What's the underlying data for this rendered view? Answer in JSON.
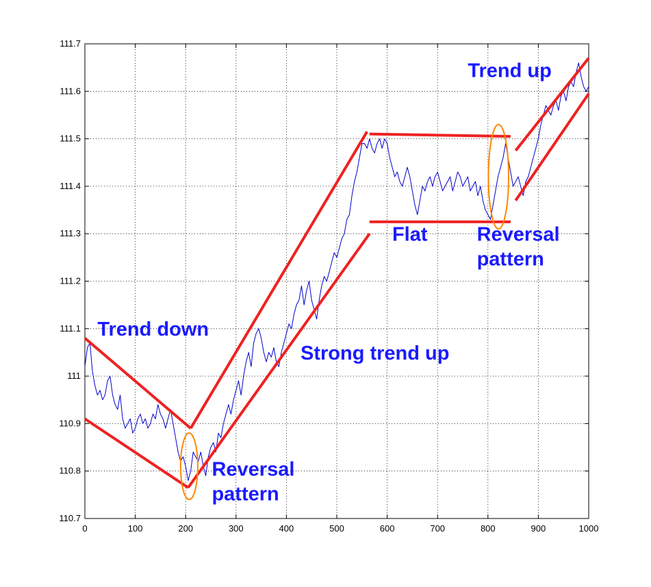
{
  "chart_data": {
    "type": "line",
    "title": "",
    "xlabel": "",
    "ylabel": "",
    "xlim": [
      0,
      1000
    ],
    "ylim": [
      110.7,
      111.7
    ],
    "grid": true,
    "x_ticks": [
      0,
      100,
      200,
      300,
      400,
      500,
      600,
      700,
      800,
      900,
      1000
    ],
    "y_ticks": [
      110.7,
      110.8,
      110.9,
      111,
      111.1,
      111.2,
      111.3,
      111.4,
      111.5,
      111.6,
      111.7
    ],
    "x_tick_labels": [
      "0",
      "100",
      "200",
      "300",
      "400",
      "500",
      "600",
      "700",
      "800",
      "900",
      "1000"
    ],
    "y_tick_labels": [
      "110.7",
      "110.8",
      "110.9",
      "111",
      "111.1",
      "111.2",
      "111.3",
      "111.4",
      "111.5",
      "111.6",
      "111.7"
    ],
    "series": [
      {
        "color": "#0000cc",
        "x": [
          0,
          5,
          10,
          15,
          20,
          25,
          30,
          35,
          40,
          45,
          50,
          55,
          60,
          65,
          70,
          75,
          80,
          85,
          90,
          95,
          100,
          105,
          110,
          115,
          120,
          125,
          130,
          135,
          140,
          145,
          150,
          155,
          160,
          165,
          170,
          175,
          180,
          185,
          190,
          195,
          200,
          205,
          210,
          215,
          220,
          225,
          230,
          235,
          240,
          245,
          250,
          255,
          260,
          265,
          270,
          275,
          280,
          285,
          290,
          295,
          300,
          305,
          310,
          315,
          320,
          325,
          330,
          335,
          340,
          345,
          350,
          355,
          360,
          365,
          370,
          375,
          380,
          385,
          390,
          395,
          400,
          405,
          410,
          415,
          420,
          425,
          430,
          435,
          440,
          445,
          450,
          455,
          460,
          465,
          470,
          475,
          480,
          485,
          490,
          495,
          500,
          505,
          510,
          515,
          520,
          525,
          530,
          535,
          540,
          545,
          550,
          555,
          560,
          565,
          570,
          575,
          580,
          585,
          590,
          595,
          600,
          605,
          610,
          615,
          620,
          625,
          630,
          635,
          640,
          645,
          650,
          655,
          660,
          665,
          670,
          675,
          680,
          685,
          690,
          695,
          700,
          705,
          710,
          715,
          720,
          725,
          730,
          735,
          740,
          745,
          750,
          755,
          760,
          765,
          770,
          775,
          780,
          785,
          790,
          795,
          800,
          805,
          810,
          815,
          820,
          825,
          830,
          835,
          840,
          845,
          850,
          855,
          860,
          865,
          870,
          875,
          880,
          885,
          890,
          895,
          900,
          905,
          910,
          915,
          920,
          925,
          930,
          935,
          940,
          945,
          950,
          955,
          960,
          965,
          970,
          975,
          980,
          985,
          990,
          995,
          1000
        ],
        "y": [
          111.02,
          111.06,
          111.07,
          111.01,
          110.98,
          110.96,
          110.97,
          110.95,
          110.96,
          110.99,
          111.0,
          110.96,
          110.94,
          110.93,
          110.96,
          110.91,
          110.89,
          110.9,
          110.91,
          110.88,
          110.89,
          110.91,
          110.92,
          110.9,
          110.91,
          110.89,
          110.9,
          110.92,
          110.91,
          110.94,
          110.92,
          110.91,
          110.89,
          110.91,
          110.93,
          110.9,
          110.87,
          110.84,
          110.82,
          110.83,
          110.81,
          110.78,
          110.8,
          110.84,
          110.83,
          110.82,
          110.84,
          110.81,
          110.79,
          110.83,
          110.85,
          110.86,
          110.84,
          110.88,
          110.87,
          110.9,
          110.92,
          110.94,
          110.92,
          110.95,
          110.97,
          110.99,
          110.96,
          111.0,
          111.03,
          111.05,
          111.02,
          111.07,
          111.09,
          111.1,
          111.08,
          111.05,
          111.03,
          111.05,
          111.04,
          111.06,
          111.03,
          111.02,
          111.05,
          111.07,
          111.09,
          111.11,
          111.1,
          111.13,
          111.15,
          111.16,
          111.19,
          111.15,
          111.18,
          111.2,
          111.16,
          111.14,
          111.12,
          111.16,
          111.19,
          111.21,
          111.2,
          111.22,
          111.24,
          111.26,
          111.25,
          111.27,
          111.29,
          111.3,
          111.33,
          111.34,
          111.38,
          111.41,
          111.43,
          111.46,
          111.49,
          111.49,
          111.48,
          111.5,
          111.48,
          111.47,
          111.49,
          111.5,
          111.48,
          111.5,
          111.49,
          111.46,
          111.44,
          111.42,
          111.43,
          111.41,
          111.4,
          111.42,
          111.44,
          111.42,
          111.39,
          111.36,
          111.34,
          111.37,
          111.4,
          111.39,
          111.41,
          111.42,
          111.4,
          111.42,
          111.43,
          111.41,
          111.39,
          111.4,
          111.41,
          111.42,
          111.39,
          111.41,
          111.43,
          111.42,
          111.4,
          111.41,
          111.42,
          111.39,
          111.4,
          111.41,
          111.38,
          111.4,
          111.37,
          111.35,
          111.34,
          111.33,
          111.36,
          111.39,
          111.42,
          111.44,
          111.46,
          111.49,
          111.46,
          111.43,
          111.4,
          111.41,
          111.42,
          111.4,
          111.38,
          111.41,
          111.42,
          111.44,
          111.46,
          111.48,
          111.5,
          111.53,
          111.55,
          111.57,
          111.56,
          111.55,
          111.57,
          111.58,
          111.56,
          111.59,
          111.6,
          111.58,
          111.61,
          111.62,
          111.61,
          111.64,
          111.66,
          111.63,
          111.61,
          111.6,
          111.61
        ]
      }
    ],
    "trend_lines": [
      {
        "x": [
          0,
          210
        ],
        "y": [
          111.08,
          110.89
        ]
      },
      {
        "x": [
          0,
          205
        ],
        "y": [
          110.91,
          110.765
        ]
      },
      {
        "x": [
          210,
          560
        ],
        "y": [
          110.89,
          111.515
        ]
      },
      {
        "x": [
          205,
          565
        ],
        "y": [
          110.765,
          111.3
        ]
      },
      {
        "x": [
          565,
          845
        ],
        "y": [
          111.51,
          111.505
        ]
      },
      {
        "x": [
          565,
          845
        ],
        "y": [
          111.325,
          111.325
        ]
      },
      {
        "x": [
          855,
          1000
        ],
        "y": [
          111.475,
          111.67
        ]
      },
      {
        "x": [
          855,
          1000
        ],
        "y": [
          111.37,
          111.595
        ]
      }
    ],
    "trend_line_color": "#ee2222",
    "ellipses": [
      {
        "cx": 207,
        "cy": 110.81,
        "rx": 17,
        "ry": 0.07
      },
      {
        "cx": 821,
        "cy": 111.42,
        "rx": 20,
        "ry": 0.11
      }
    ],
    "ellipse_color": "#ff8800",
    "annotations": [
      {
        "lines": [
          "Trend down"
        ],
        "x": 25,
        "y": 111.085
      },
      {
        "lines": [
          "Reversal",
          "pattern"
        ],
        "x": 252,
        "y": 110.79
      },
      {
        "lines": [
          "Strong trend up"
        ],
        "x": 428,
        "y": 111.035
      },
      {
        "lines": [
          "Flat"
        ],
        "x": 610,
        "y": 111.285
      },
      {
        "lines": [
          "Reversal",
          "pattern"
        ],
        "x": 778,
        "y": 111.285
      },
      {
        "lines": [
          "Trend up"
        ],
        "x": 760,
        "y": 111.63
      }
    ]
  }
}
